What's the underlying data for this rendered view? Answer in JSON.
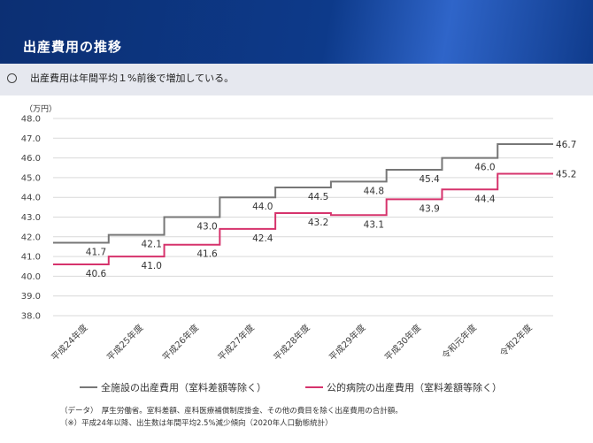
{
  "header": {
    "title": "出産費用の推移"
  },
  "summary": "出産費用は年間平均１%前後で増加している。",
  "unit_label": "（万円）",
  "chart_data": {
    "type": "line",
    "categories": [
      "平成24年度",
      "平成25年度",
      "平成26年度",
      "平成27年度",
      "平成28年度",
      "平成29年度",
      "平成30年度",
      "令和元年度",
      "令和2年度"
    ],
    "series": [
      {
        "name": "全施設の出産費用（室料差額等除く）",
        "color": "#777777",
        "values": [
          41.7,
          42.1,
          43.0,
          44.0,
          44.5,
          44.8,
          45.4,
          46.0,
          46.7
        ]
      },
      {
        "name": "公的病院の出産費用（室料差額等除く）",
        "color": "#d6336c",
        "values": [
          40.6,
          41.0,
          41.6,
          42.4,
          43.2,
          43.1,
          43.9,
          44.4,
          45.2
        ]
      }
    ],
    "ylim": [
      38.0,
      48.0
    ],
    "yticks": [
      "38.0",
      "39.0",
      "40.0",
      "41.0",
      "42.0",
      "43.0",
      "44.0",
      "45.0",
      "46.0",
      "47.0",
      "48.0"
    ],
    "grid": true,
    "step_style": true
  },
  "notes": [
    "（データ）　厚生労働省。室料差額、産科医療補償制度掛金、その他の費目を除く出産費用の合計額。",
    "（※）平成24年以降、出生数は年間平均2.5%減少傾向（2020年人口動態統計）"
  ]
}
